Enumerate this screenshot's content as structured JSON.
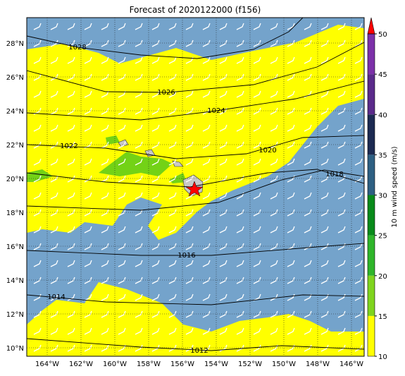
{
  "title": "Forecast of 2020122000 (f156)",
  "lat_labels": [
    "28°N",
    "26°N",
    "24°N",
    "22°N",
    "20°N",
    "18°N",
    "16°N",
    "14°N",
    "12°N",
    "10°N"
  ],
  "lon_labels": [
    "164°W",
    "162°W",
    "160°W",
    "158°W",
    "156°W",
    "154°W",
    "152°W",
    "150°W",
    "148°W",
    "146°W"
  ],
  "contour_labels": [
    1028,
    1026,
    1024,
    1022,
    1020,
    1018,
    1016,
    1014,
    1012
  ],
  "colorbar": {
    "label": "10 m wind speed (m/s)",
    "ticks": [
      10,
      15,
      20,
      25,
      30,
      35,
      40,
      45,
      50
    ],
    "colors": [
      "#ffff00",
      "#7fd41e",
      "#2fb52a",
      "#088a1a",
      "#2d5f82",
      "#1c2a52",
      "#5a2a8a",
      "#7c30a8"
    ],
    "extend_color": "#ff0000"
  }
}
